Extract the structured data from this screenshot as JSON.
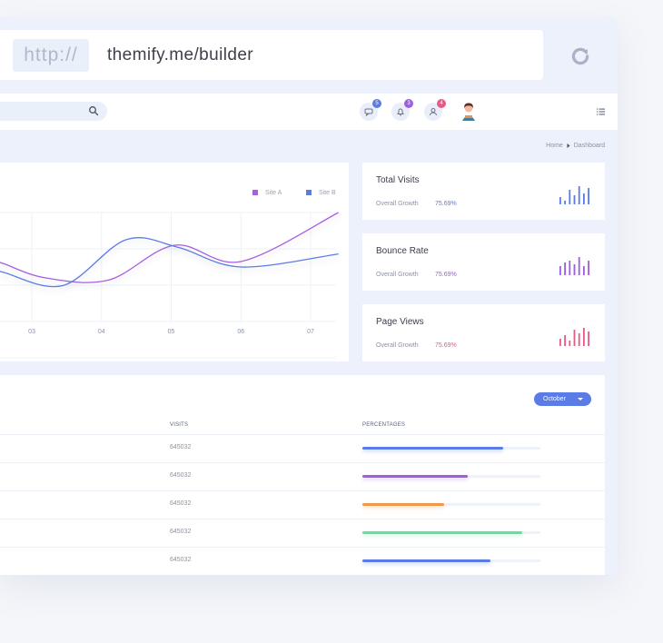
{
  "browser": {
    "protocol": "http://",
    "url": "themify.me/builder"
  },
  "topnav": {
    "notifications": [
      {
        "icon": "chat-icon",
        "count": "5",
        "color": "#5b7be6"
      },
      {
        "icon": "bell-icon",
        "count": "3",
        "color": "#9c5fe0"
      },
      {
        "icon": "user-icon",
        "count": "4",
        "color": "#e85a86"
      }
    ]
  },
  "breadcrumb": {
    "home": "Home",
    "current": "Dashboard"
  },
  "chart": {
    "legend": [
      {
        "name": "Site A",
        "color": "#a55fe0"
      },
      {
        "name": "Site B",
        "color": "#5b7be6"
      }
    ]
  },
  "chart_data": {
    "type": "line",
    "title": "",
    "x": [
      "03",
      "04",
      "05",
      "06",
      "07"
    ],
    "ylim": [
      0,
      100
    ],
    "series": [
      {
        "name": "Site A",
        "color": "#a55fe0",
        "points": [
          [
            1.6,
            53
          ],
          [
            2.2,
            40
          ],
          [
            3.1,
            38
          ],
          [
            4.05,
            70
          ],
          [
            5.0,
            55
          ],
          [
            6.4,
            100
          ]
        ]
      },
      {
        "name": "Site B",
        "color": "#5b7be6",
        "points": [
          [
            1.6,
            45
          ],
          [
            2.45,
            33
          ],
          [
            3.35,
            75
          ],
          [
            4.1,
            68
          ],
          [
            5.0,
            50
          ],
          [
            6.4,
            62
          ]
        ]
      }
    ]
  },
  "stats": [
    {
      "title": "Total Visits",
      "sub": "Overall Growth",
      "value": "75.69%",
      "color": "#5b7be6",
      "bars": [
        0.4,
        0.2,
        0.8,
        0.5,
        1.0,
        0.6,
        0.9
      ]
    },
    {
      "title": "Bounce Rate",
      "sub": "Overall Growth",
      "value": "75.69%",
      "color": "#9c5fe0",
      "bars": [
        0.5,
        0.7,
        0.8,
        0.6,
        1.0,
        0.5,
        0.8
      ]
    },
    {
      "title": "Page Views",
      "sub": "Overall Growth",
      "value": "75.69%",
      "color": "#e85a86",
      "bars": [
        0.4,
        0.6,
        0.3,
        0.9,
        0.7,
        1.0,
        0.8
      ]
    }
  ],
  "table": {
    "month": "October",
    "headers": {
      "visits": "VISITS",
      "percentages": "PERCENTAGES"
    },
    "rows": [
      {
        "visits": "645032",
        "percent": 0.79,
        "color": "#5b7be6"
      },
      {
        "visits": "645032",
        "percent": 0.59,
        "color": "#9c5fe0"
      },
      {
        "visits": "645032",
        "percent": 0.46,
        "color": "#f0984a"
      },
      {
        "visits": "645032",
        "percent": 0.9,
        "color": "#5ee39a"
      },
      {
        "visits": "645032",
        "percent": 0.72,
        "color": "#5b7be6"
      }
    ]
  }
}
